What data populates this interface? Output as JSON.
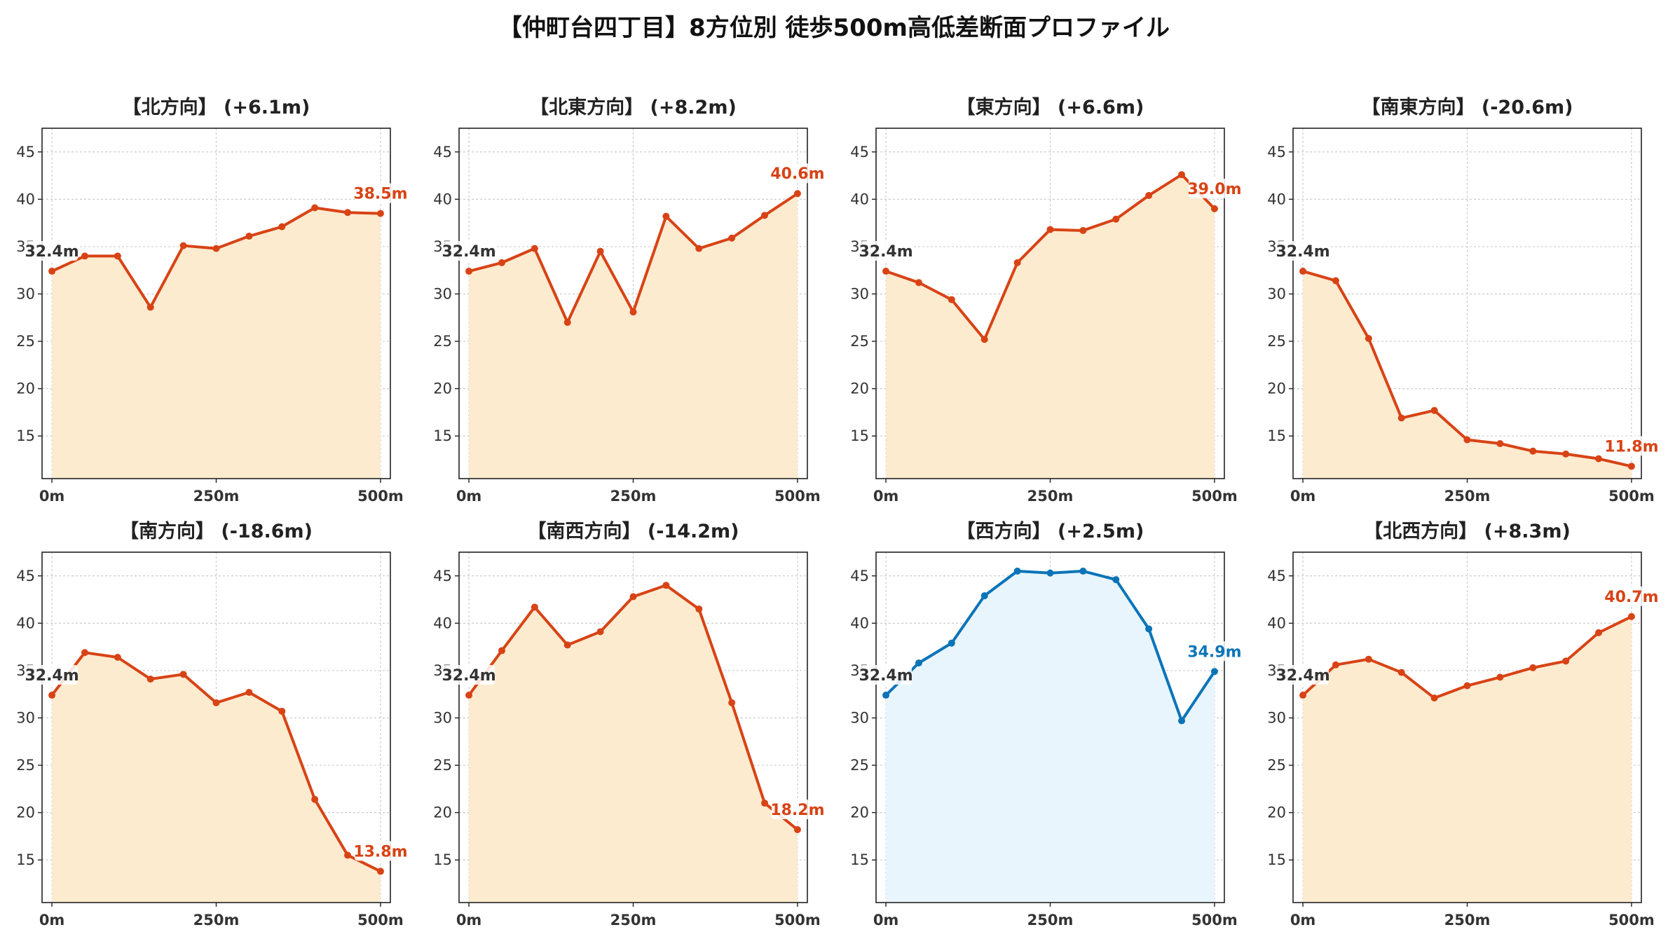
{
  "title": "【仲町台四丁目】8方位別 徒歩500m高低差断面プロファイル",
  "chart_data": [
    {
      "type": "area",
      "title": "【北方向】 (+6.1m)",
      "x": [
        0,
        50,
        100,
        150,
        200,
        250,
        300,
        350,
        400,
        450,
        500
      ],
      "values": [
        32.4,
        34.0,
        34.0,
        28.6,
        35.1,
        34.8,
        36.1,
        37.1,
        39.1,
        38.6,
        38.5
      ],
      "start_label": "32.4m",
      "end_label": "38.5m",
      "color": "#d84315",
      "fill": "#fdebd0",
      "xticks": [
        "0m",
        "250m",
        "500m"
      ],
      "yticks": [
        15,
        20,
        25,
        30,
        35,
        40,
        45
      ],
      "ylim": [
        10.5,
        47.5
      ],
      "xlim": [
        -15,
        515
      ],
      "grid": true
    },
    {
      "type": "area",
      "title": "【北東方向】 (+8.2m)",
      "x": [
        0,
        50,
        100,
        150,
        200,
        250,
        300,
        350,
        400,
        450,
        500
      ],
      "values": [
        32.4,
        33.3,
        34.8,
        27.0,
        34.5,
        28.1,
        38.2,
        34.8,
        35.9,
        38.3,
        40.6
      ],
      "start_label": "32.4m",
      "end_label": "40.6m",
      "color": "#d84315",
      "fill": "#fdebd0",
      "xticks": [
        "0m",
        "250m",
        "500m"
      ],
      "yticks": [
        15,
        20,
        25,
        30,
        35,
        40,
        45
      ],
      "ylim": [
        10.5,
        47.5
      ],
      "xlim": [
        -15,
        515
      ],
      "grid": true
    },
    {
      "type": "area",
      "title": "【東方向】 (+6.6m)",
      "x": [
        0,
        50,
        100,
        150,
        200,
        250,
        300,
        350,
        400,
        450,
        500
      ],
      "values": [
        32.4,
        31.2,
        29.4,
        25.2,
        33.3,
        36.8,
        36.7,
        37.9,
        40.4,
        42.6,
        39.0
      ],
      "start_label": "32.4m",
      "end_label": "39.0m",
      "color": "#d84315",
      "fill": "#fdebd0",
      "xticks": [
        "0m",
        "250m",
        "500m"
      ],
      "yticks": [
        15,
        20,
        25,
        30,
        35,
        40,
        45
      ],
      "ylim": [
        10.5,
        47.5
      ],
      "xlim": [
        -15,
        515
      ],
      "grid": true
    },
    {
      "type": "area",
      "title": "【南東方向】 (-20.6m)",
      "x": [
        0,
        50,
        100,
        150,
        200,
        250,
        300,
        350,
        400,
        450,
        500
      ],
      "values": [
        32.4,
        31.4,
        25.3,
        16.9,
        17.7,
        14.6,
        14.2,
        13.4,
        13.1,
        12.6,
        11.8
      ],
      "start_label": "32.4m",
      "end_label": "11.8m",
      "color": "#d84315",
      "fill": "#fdebd0",
      "xticks": [
        "0m",
        "250m",
        "500m"
      ],
      "yticks": [
        15,
        20,
        25,
        30,
        35,
        40,
        45
      ],
      "ylim": [
        10.5,
        47.5
      ],
      "xlim": [
        -15,
        515
      ],
      "grid": true
    },
    {
      "type": "area",
      "title": "【南方向】 (-18.6m)",
      "x": [
        0,
        50,
        100,
        150,
        200,
        250,
        300,
        350,
        400,
        450,
        500
      ],
      "values": [
        32.4,
        36.9,
        36.4,
        34.1,
        34.6,
        31.6,
        32.7,
        30.7,
        21.4,
        15.5,
        13.8
      ],
      "start_label": "32.4m",
      "end_label": "13.8m",
      "color": "#d84315",
      "fill": "#fdebd0",
      "xticks": [
        "0m",
        "250m",
        "500m"
      ],
      "yticks": [
        15,
        20,
        25,
        30,
        35,
        40,
        45
      ],
      "ylim": [
        10.5,
        47.5
      ],
      "xlim": [
        -15,
        515
      ],
      "grid": true
    },
    {
      "type": "area",
      "title": "【南西方向】 (-14.2m)",
      "x": [
        0,
        50,
        100,
        150,
        200,
        250,
        300,
        350,
        400,
        450,
        500
      ],
      "values": [
        32.4,
        37.1,
        41.7,
        37.7,
        39.1,
        42.8,
        44.0,
        41.5,
        31.6,
        21.0,
        18.2
      ],
      "start_label": "32.4m",
      "end_label": "18.2m",
      "color": "#d84315",
      "fill": "#fdebd0",
      "xticks": [
        "0m",
        "250m",
        "500m"
      ],
      "yticks": [
        15,
        20,
        25,
        30,
        35,
        40,
        45
      ],
      "ylim": [
        10.5,
        47.5
      ],
      "xlim": [
        -15,
        515
      ],
      "grid": true
    },
    {
      "type": "area",
      "title": "【西方向】 (+2.5m)",
      "x": [
        0,
        50,
        100,
        150,
        200,
        250,
        300,
        350,
        400,
        450,
        500
      ],
      "values": [
        32.4,
        35.8,
        37.9,
        42.9,
        45.5,
        45.3,
        45.5,
        44.6,
        39.4,
        29.7,
        34.9
      ],
      "start_label": "32.4m",
      "end_label": "34.9m",
      "color": "#0b74b8",
      "fill": "#e8f5fc",
      "xticks": [
        "0m",
        "250m",
        "500m"
      ],
      "yticks": [
        15,
        20,
        25,
        30,
        35,
        40,
        45
      ],
      "ylim": [
        10.5,
        47.5
      ],
      "xlim": [
        -15,
        515
      ],
      "grid": true
    },
    {
      "type": "area",
      "title": "【北西方向】 (+8.3m)",
      "x": [
        0,
        50,
        100,
        150,
        200,
        250,
        300,
        350,
        400,
        450,
        500
      ],
      "values": [
        32.4,
        35.6,
        36.2,
        34.8,
        32.1,
        33.4,
        34.3,
        35.3,
        36.0,
        39.0,
        40.7
      ],
      "start_label": "32.4m",
      "end_label": "40.7m",
      "color": "#d84315",
      "fill": "#fdebd0",
      "xticks": [
        "0m",
        "250m",
        "500m"
      ],
      "yticks": [
        15,
        20,
        25,
        30,
        35,
        40,
        45
      ],
      "ylim": [
        10.5,
        47.5
      ],
      "xlim": [
        -15,
        515
      ],
      "grid": true
    }
  ]
}
